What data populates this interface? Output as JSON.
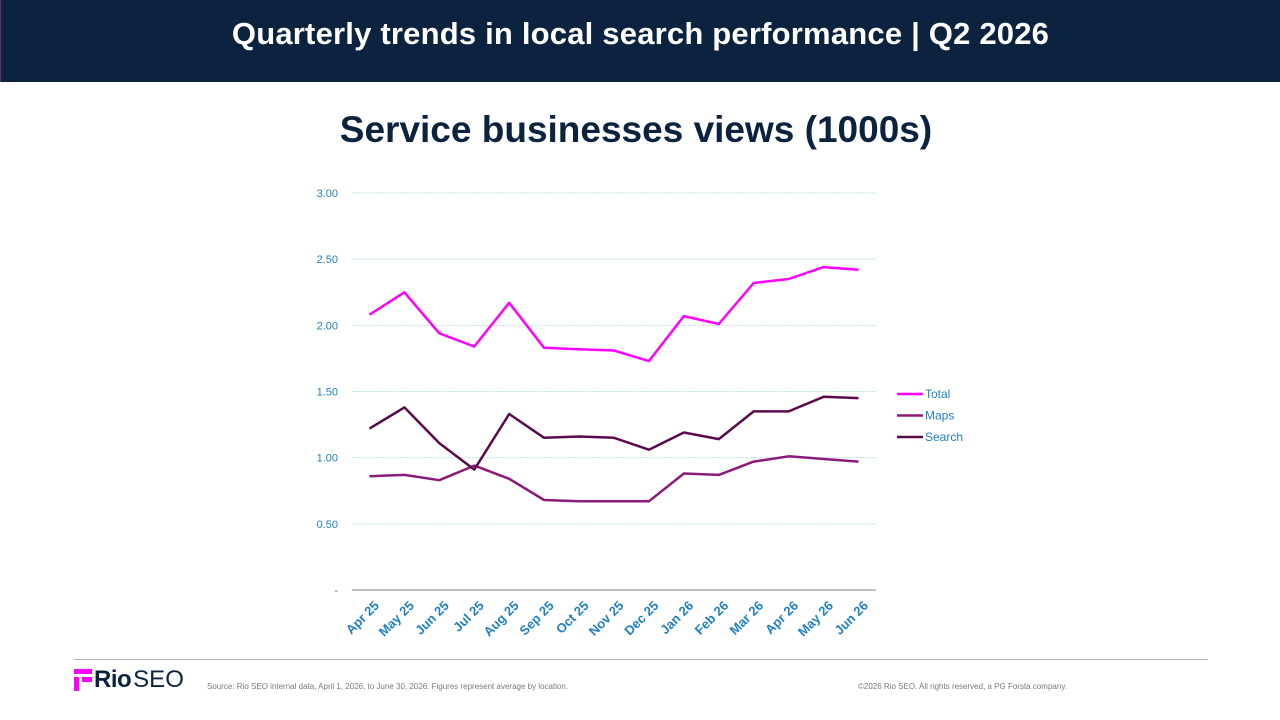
{
  "header": {
    "title": "Quarterly trends in local search performance  |  Q2 2026"
  },
  "chart_data": {
    "type": "line",
    "title": "Service businesses views (1000s)",
    "xlabel": "",
    "ylabel": "",
    "categories": [
      "Apr 25",
      "May 25",
      "Jun 25",
      "Jul 25",
      "Aug 25",
      "Sep 25",
      "Oct 25",
      "Nov 25",
      "Dec 25",
      "Jan 26",
      "Feb 26",
      "Mar 26",
      "Apr 26",
      "May 26",
      "Jun 26"
    ],
    "ylim": [
      0,
      3
    ],
    "yticks": [
      0,
      0.5,
      1.0,
      1.5,
      2.0,
      2.5,
      3.0
    ],
    "ytick_labels": [
      "-",
      "0.50",
      "1.00",
      "1.50",
      "2.00",
      "2.50",
      "3.00"
    ],
    "grid": true,
    "legend_position": "right",
    "series": [
      {
        "name": "Total",
        "color": "#ff00ff",
        "values": [
          2.08,
          2.25,
          1.94,
          1.84,
          2.17,
          1.83,
          1.82,
          1.81,
          1.73,
          2.07,
          2.01,
          2.32,
          2.35,
          2.44,
          2.42
        ]
      },
      {
        "name": "Maps",
        "color": "#8b1a7a",
        "values": [
          0.86,
          0.87,
          0.83,
          0.94,
          0.84,
          0.68,
          0.67,
          0.67,
          0.67,
          0.88,
          0.87,
          0.97,
          1.01,
          0.99,
          0.97
        ]
      },
      {
        "name": "Search",
        "color": "#5a0a4a",
        "values": [
          1.22,
          1.38,
          1.11,
          0.91,
          1.33,
          1.15,
          1.16,
          1.15,
          1.06,
          1.19,
          1.14,
          1.35,
          1.35,
          1.46,
          1.45
        ]
      }
    ]
  },
  "footer": {
    "logo_rio": "Rio",
    "logo_seo": "SEO",
    "source": "Source: Rio SEO internal data, April 1, 2026, to June 30, 2026. Figures represent average by location.",
    "copyright": "©2026 Rio SEO. All rights reserved, a PG Forsta company."
  },
  "colors": {
    "header_bg": "#0c2340",
    "axis_text": "#1f7fc4",
    "grid": "#bfe0ea"
  }
}
